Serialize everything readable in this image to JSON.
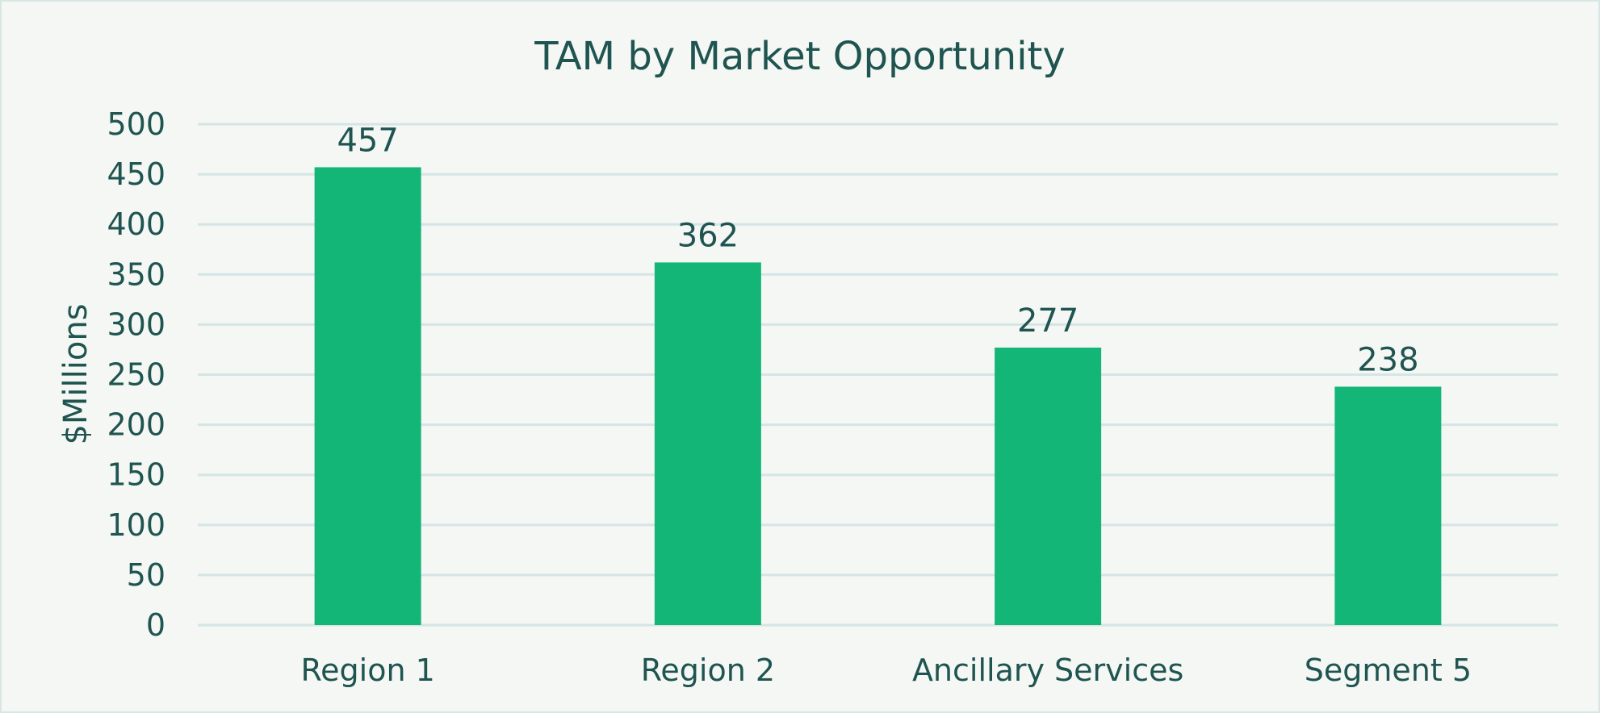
{
  "chart_data": {
    "type": "bar",
    "title": "TAM by Market Opportunity",
    "ylabel": "$Millions",
    "xlabel": "",
    "categories": [
      "Region 1",
      "Region 2",
      "Ancillary Services",
      "Segment 5"
    ],
    "values": [
      457,
      362,
      277,
      238
    ],
    "ylim": [
      0,
      500
    ],
    "yticks": [
      0,
      50,
      100,
      150,
      200,
      250,
      300,
      350,
      400,
      450,
      500
    ],
    "grid": true,
    "data_labels": true,
    "colors": {
      "bar": "#13b677",
      "text": "#1f5450",
      "grid": "#d5e5e5",
      "background": "#f4f7f4"
    }
  }
}
